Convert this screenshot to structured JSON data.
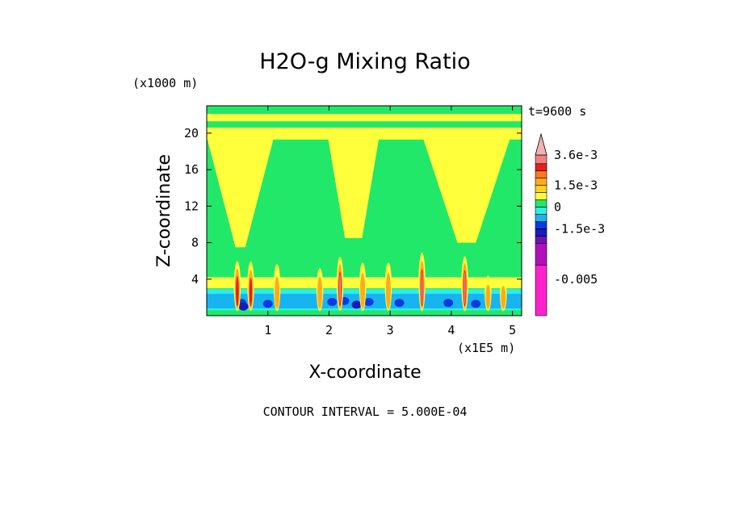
{
  "chart_data": {
    "type": "heatmap",
    "title": "H2O-g Mixing Ratio",
    "xlabel": "X-coordinate",
    "ylabel": "Z-coordinate",
    "x_unit": "(x1E5 m)",
    "y_unit": "(x1000 m)",
    "time_label": "t=9600 s",
    "footer": "CONTOUR INTERVAL = 5.000E-04",
    "xlim": [
      0,
      5.15
    ],
    "ylim": [
      0,
      23
    ],
    "x_ticks": [
      {
        "value": 1,
        "label": "1"
      },
      {
        "value": 2,
        "label": "2"
      },
      {
        "value": 3,
        "label": "3"
      },
      {
        "value": 4,
        "label": "4"
      },
      {
        "value": 5,
        "label": "5"
      }
    ],
    "y_ticks": [
      {
        "value": 4,
        "label": "4"
      },
      {
        "value": 8,
        "label": "8"
      },
      {
        "value": 12,
        "label": "12"
      },
      {
        "value": 16,
        "label": "16"
      },
      {
        "value": 20,
        "label": "20"
      }
    ],
    "colorbar": {
      "labels": [
        {
          "text": "3.6e-3",
          "level": 0.0036
        },
        {
          "text": "1.5e-3",
          "level": 0.0015
        },
        {
          "text": "0",
          "level": 0
        },
        {
          "text": "-1.5e-3",
          "level": -0.0015
        },
        {
          "text": "-0.005",
          "level": -0.005
        }
      ],
      "bands": [
        {
          "from": -0.0075,
          "to": -0.004,
          "color": "#ff22cc"
        },
        {
          "from": -0.004,
          "to": -0.0025,
          "color": "#b010b8"
        },
        {
          "from": -0.0025,
          "to": -0.002,
          "color": "#6a14b8"
        },
        {
          "from": -0.002,
          "to": -0.0015,
          "color": "#1a1ab8"
        },
        {
          "from": -0.0015,
          "to": -0.001,
          "color": "#0a3ae0"
        },
        {
          "from": -0.001,
          "to": -0.0005,
          "color": "#18b4f0"
        },
        {
          "from": -0.0005,
          "to": 0.0,
          "color": "#2cefe8"
        },
        {
          "from": 0.0,
          "to": 0.0005,
          "color": "#22e86a"
        },
        {
          "from": 0.0005,
          "to": 0.001,
          "color": "#ffff3c"
        },
        {
          "from": 0.001,
          "to": 0.0015,
          "color": "#ffd21e"
        },
        {
          "from": 0.0015,
          "to": 0.002,
          "color": "#ffaa1e"
        },
        {
          "from": 0.002,
          "to": 0.0025,
          "color": "#ff781e"
        },
        {
          "from": 0.0025,
          "to": 0.003,
          "color": "#e61e1e"
        },
        {
          "from": 0.003,
          "to": 0.0036,
          "color": "#f08080"
        }
      ],
      "overflow_color": "#f2b2b2"
    },
    "field": {
      "background_level": 0.00025,
      "plumes": [
        {
          "x": 0.55,
          "base_z": 7.5,
          "top_z": 19.6,
          "half_width_base": 0.08,
          "half_width_top": 0.55,
          "level": 0.00075
        },
        {
          "x": 2.4,
          "base_z": 8.5,
          "top_z": 19.6,
          "half_width_base": 0.14,
          "half_width_top": 0.42,
          "level": 0.00075
        },
        {
          "x": 4.25,
          "base_z": 8.0,
          "top_z": 19.6,
          "half_width_base": 0.15,
          "half_width_top": 0.72,
          "level": 0.00075
        }
      ],
      "upper_band": {
        "z_from": 19.3,
        "z_to": 20.6,
        "level": 0.00075
      },
      "top_band": {
        "z_from": 21.3,
        "z_to": 22.1,
        "level": 0.00075
      },
      "boundary_layer": [
        {
          "z_from": 3.0,
          "z_to": 4.2,
          "level": 0.00075
        },
        {
          "z_from": 0.6,
          "z_to": 2.9,
          "level": -0.00025
        },
        {
          "z_from": 0.8,
          "z_to": 2.4,
          "level": -0.00075
        }
      ],
      "blue_patches": [
        {
          "x": 0.57,
          "z": 1.4,
          "level": -0.00125
        },
        {
          "x": 0.6,
          "z": 1.0,
          "level": -0.00175
        },
        {
          "x": 1.0,
          "z": 1.3,
          "level": -0.00125
        },
        {
          "x": 2.05,
          "z": 1.5,
          "level": -0.00125
        },
        {
          "x": 2.25,
          "z": 1.6,
          "level": -0.00125
        },
        {
          "x": 2.45,
          "z": 1.2,
          "level": -0.00175
        },
        {
          "x": 2.65,
          "z": 1.5,
          "level": -0.00125
        },
        {
          "x": 3.15,
          "z": 1.4,
          "level": -0.00125
        },
        {
          "x": 3.95,
          "z": 1.4,
          "level": -0.00125
        },
        {
          "x": 4.4,
          "z": 1.3,
          "level": -0.00125
        }
      ],
      "cores": [
        {
          "x": 0.5,
          "z_from": 0.5,
          "z_to": 6.5,
          "peak": 0.0028
        },
        {
          "x": 0.72,
          "z_from": 0.5,
          "z_to": 6.5,
          "peak": 0.0026
        },
        {
          "x": 1.15,
          "z_from": 0.5,
          "z_to": 6.5,
          "peak": 0.0018
        },
        {
          "x": 1.85,
          "z_from": 0.5,
          "z_to": 5.8,
          "peak": 0.0022
        },
        {
          "x": 2.18,
          "z_from": 0.5,
          "z_to": 7.0,
          "peak": 0.003
        },
        {
          "x": 2.55,
          "z_from": 0.5,
          "z_to": 6.5,
          "peak": 0.0022
        },
        {
          "x": 2.97,
          "z_from": 0.5,
          "z_to": 6.5,
          "peak": 0.0022
        },
        {
          "x": 3.52,
          "z_from": 0.5,
          "z_to": 7.5,
          "peak": 0.003
        },
        {
          "x": 4.22,
          "z_from": 0.5,
          "z_to": 7.0,
          "peak": 0.0032
        },
        {
          "x": 4.6,
          "z_from": 0.5,
          "z_to": 5.0,
          "peak": 0.0018
        },
        {
          "x": 4.85,
          "z_from": 0.5,
          "z_to": 4.5,
          "peak": 0.002
        }
      ]
    }
  }
}
